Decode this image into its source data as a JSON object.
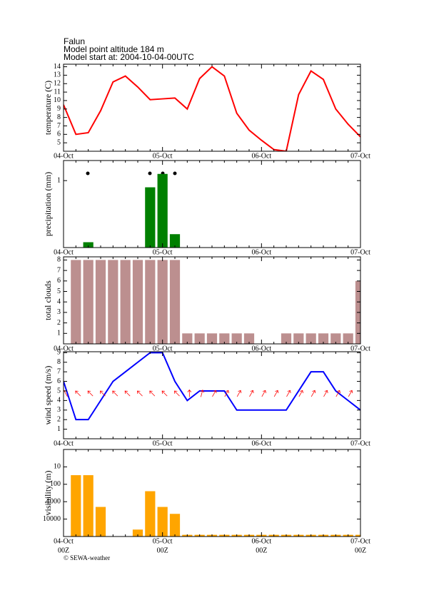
{
  "header": {
    "location": "Falun",
    "altitude": "Model point altitude  184 m",
    "start": "Model start at: 2004-10-04-00UTC"
  },
  "footer": "© SEWA-weather",
  "chart_data": [
    {
      "type": "line",
      "y_label": "temperature (C)",
      "color": "#ff0000",
      "categories": [
        "04-Oct",
        null,
        null,
        null,
        null,
        null,
        null,
        null,
        "05-Oct",
        null,
        null,
        null,
        null,
        null,
        null,
        null,
        "06-Oct",
        null,
        null,
        null,
        null,
        null,
        null,
        null,
        "07-Oct"
      ],
      "values": [
        9.5,
        6,
        6.2,
        8.8,
        12.2,
        12.9,
        11.6,
        10.1,
        10.2,
        10.3,
        9,
        12.6,
        14,
        12.9,
        8.5,
        6.5,
        5.3,
        4.2,
        4,
        10.7,
        13.5,
        12.5,
        9,
        7.2,
        5.7
      ],
      "ylim": [
        4,
        14.3
      ],
      "yticks": [
        5,
        6,
        7,
        8,
        9,
        10,
        11,
        12,
        13,
        14
      ]
    },
    {
      "type": "bar",
      "y_label": "precipitation (mm)",
      "color": "#008000",
      "categories": [
        "04-Oct",
        null,
        null,
        null,
        null,
        null,
        null,
        null,
        "05-Oct",
        null,
        null,
        null,
        null,
        null,
        null,
        null,
        "06-Oct",
        null,
        null,
        null,
        null,
        null,
        null,
        null,
        "07-Oct"
      ],
      "values": [
        0,
        0,
        0.08,
        0,
        0,
        0,
        0,
        0.9,
        1.1,
        0.2,
        0,
        0,
        0,
        0,
        0,
        0,
        0,
        0,
        0,
        0,
        0,
        0,
        0,
        0,
        0
      ],
      "ylim": [
        0,
        1.3
      ],
      "yticks": [
        1
      ]
    },
    {
      "type": "bar",
      "y_label": "total clouds",
      "color": "#bc8f8f",
      "categories": [
        "04-Oct",
        null,
        null,
        null,
        null,
        null,
        null,
        null,
        "05-Oct",
        null,
        null,
        null,
        null,
        null,
        null,
        null,
        "06-Oct",
        null,
        null,
        null,
        null,
        null,
        null,
        null,
        "07-Oct"
      ],
      "values": [
        0,
        8,
        8,
        8,
        8,
        8,
        8,
        8,
        8,
        8,
        1,
        1,
        1,
        1,
        1,
        1,
        0,
        0,
        1,
        1,
        1,
        1,
        1,
        1,
        6
      ],
      "ylim": [
        0,
        8.3
      ],
      "yticks": [
        1,
        2,
        3,
        4,
        5,
        6,
        7,
        8
      ]
    },
    {
      "type": "line",
      "y_label": "wind speed (m/s)",
      "color": "#0000ff",
      "arrow_color": "#ff0000",
      "categories": [
        "04-Oct",
        null,
        null,
        null,
        null,
        null,
        null,
        null,
        "05-Oct",
        null,
        null,
        null,
        null,
        null,
        null,
        null,
        "06-Oct",
        null,
        null,
        null,
        null,
        null,
        null,
        null,
        "07-Oct"
      ],
      "values": [
        6,
        2,
        2,
        4,
        6,
        7,
        8,
        9,
        9,
        6,
        4,
        5,
        5,
        5,
        3,
        3,
        3,
        3,
        3,
        5,
        7,
        7,
        5,
        4,
        3
      ],
      "wind_direction": [
        330,
        315,
        315,
        315,
        315,
        315,
        315,
        315,
        315,
        315,
        0,
        15,
        30,
        30,
        30,
        30,
        30,
        30,
        30,
        30,
        30,
        30,
        30,
        30,
        30
      ],
      "ylim": [
        0,
        9.1
      ],
      "yticks": [
        1,
        2,
        3,
        4,
        5,
        6,
        7,
        8,
        9
      ]
    },
    {
      "type": "bar",
      "y_label": "visibility (m)",
      "color": "#ffa500",
      "log": true,
      "categories": [
        "04-Oct",
        null,
        null,
        null,
        null,
        null,
        null,
        null,
        "05-Oct",
        null,
        null,
        null,
        null,
        null,
        null,
        null,
        "06-Oct",
        null,
        null,
        null,
        null,
        null,
        null,
        null,
        "07-Oct"
      ],
      "hour_labels": [
        "00Z",
        "00Z",
        "00Z",
        "00Z"
      ],
      "values": [
        null,
        30,
        30,
        2000,
        null,
        null,
        40000,
        250,
        2000,
        5000,
        80000,
        80000,
        80000,
        80000,
        80000,
        80000,
        80000,
        80000,
        80000,
        80000,
        80000,
        80000,
        80000,
        80000,
        80000
      ],
      "ylim": [
        100000,
        1
      ],
      "yticks": [
        10,
        100,
        1000,
        10000
      ]
    }
  ]
}
